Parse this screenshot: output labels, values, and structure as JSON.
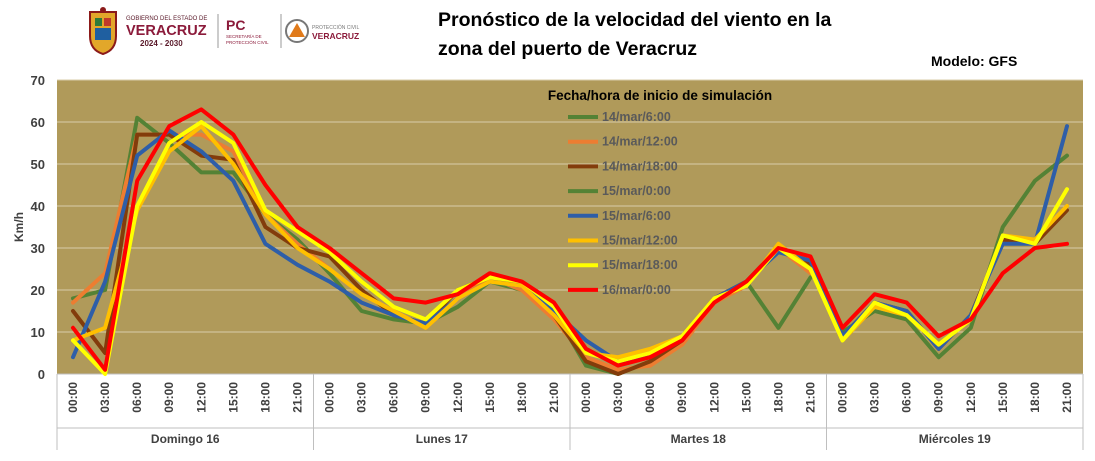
{
  "header": {
    "title_line1": "Pronóstico de la velocidad del viento en la",
    "title_line2": "zona del puerto de Veracruz",
    "model": "Modelo: GFS",
    "logo_gov_small": "GOBIERNO DEL ESTADO DE",
    "logo_gov_name": "VERACRUZ",
    "logo_gov_years": "2024 - 2030",
    "logo_pc": "PC",
    "logo_pc_sub1": "SECRETARÍA DE",
    "logo_pc_sub2": "PROTECCIÓN CIVIL",
    "logo_pc2_small": "PROTECCIÓN CIVIL",
    "logo_pc2_name": "VERACRUZ"
  },
  "colors": {
    "plot_bg": "#b09a5a",
    "grid": "#d8ccaa"
  },
  "chart_data": {
    "type": "line",
    "title": "",
    "xlabel": "",
    "ylabel": "Km/h",
    "ylim": [
      0,
      70
    ],
    "yticks": [
      0,
      10,
      20,
      30,
      40,
      50,
      60,
      70
    ],
    "legend_title": "Fecha/hora de inicio de simulación",
    "legend_position": "top-center",
    "grid": true,
    "categories": [
      "00:00",
      "03:00",
      "06:00",
      "09:00",
      "12:00",
      "15:00",
      "18:00",
      "21:00",
      "00:00",
      "03:00",
      "06:00",
      "09:00",
      "12:00",
      "15:00",
      "18:00",
      "21:00",
      "00:00",
      "03:00",
      "06:00",
      "09:00",
      "12:00",
      "15:00",
      "18:00",
      "21:00",
      "00:00",
      "03:00",
      "06:00",
      "09:00",
      "12:00",
      "15:00",
      "18:00",
      "21:00"
    ],
    "day_groups": [
      {
        "label": "Domingo 16",
        "start": 0,
        "end": 7
      },
      {
        "label": "Lunes 17",
        "start": 8,
        "end": 15
      },
      {
        "label": "Martes 18",
        "start": 16,
        "end": 23
      },
      {
        "label": "Miércoles 19",
        "start": 24,
        "end": 31
      }
    ],
    "series": [
      {
        "name": "14/mar/6:00",
        "color": "#548235",
        "values": [
          18,
          20,
          61,
          55,
          48,
          48,
          38,
          32,
          24,
          15,
          13,
          12,
          16,
          22,
          20,
          15,
          2,
          0,
          3,
          8,
          18,
          22,
          11,
          23,
          null,
          null,
          null,
          null,
          null,
          null,
          null,
          null
        ]
      },
      {
        "name": "14/mar/12:00",
        "color": "#ed7d31",
        "values": [
          17,
          24,
          57,
          57,
          57,
          53,
          38,
          31,
          25,
          19,
          15,
          11,
          18,
          23,
          20,
          13,
          4,
          1,
          2,
          7,
          17,
          21,
          30,
          24,
          null,
          null,
          null,
          null,
          null,
          null,
          null,
          null
        ]
      },
      {
        "name": "14/mar/18:00",
        "color": "#833c0b",
        "values": [
          15,
          5,
          57,
          57,
          52,
          51,
          35,
          30,
          28,
          20,
          14,
          12,
          20,
          23,
          22,
          14,
          3,
          0,
          3,
          8,
          18,
          22,
          30,
          26,
          9,
          17,
          15,
          6,
          14,
          32,
          31,
          39
        ]
      },
      {
        "name": "15/mar/0:00",
        "color": "#548235",
        "values": [
          null,
          null,
          null,
          null,
          null,
          null,
          null,
          null,
          null,
          null,
          null,
          null,
          null,
          null,
          null,
          null,
          null,
          null,
          null,
          null,
          null,
          null,
          null,
          null,
          10,
          15,
          13,
          4,
          11,
          35,
          46,
          52
        ]
      },
      {
        "name": "15/mar/6:00",
        "color": "#2e5ea8",
        "values": [
          4,
          22,
          52,
          58,
          53,
          46,
          31,
          26,
          22,
          17,
          14,
          12,
          18,
          22,
          21,
          15,
          8,
          3,
          4,
          9,
          18,
          22,
          29,
          27,
          9,
          17,
          15,
          6,
          14,
          31,
          31,
          59
        ]
      },
      {
        "name": "15/mar/12:00",
        "color": "#ffc000",
        "values": [
          8,
          11,
          39,
          53,
          59,
          50,
          38,
          30,
          25,
          19,
          15,
          11,
          18,
          22,
          21,
          14,
          5,
          4,
          6,
          9,
          18,
          21,
          31,
          25,
          8,
          16,
          14,
          7,
          13,
          33,
          32,
          40
        ]
      },
      {
        "name": "15/mar/18:00",
        "color": "#ffff00",
        "values": [
          8,
          0,
          40,
          55,
          60,
          55,
          39,
          34,
          29,
          22,
          16,
          13,
          20,
          23,
          22,
          16,
          5,
          3,
          5,
          9,
          18,
          21,
          30,
          25,
          8,
          17,
          14,
          7,
          13,
          33,
          31,
          44
        ]
      },
      {
        "name": "16/mar/0:00",
        "color": "#ff0000",
        "values": [
          11,
          1,
          46,
          59,
          63,
          57,
          45,
          35,
          30,
          24,
          18,
          17,
          19,
          24,
          22,
          17,
          6,
          2,
          4,
          8,
          17,
          22,
          30,
          28,
          11,
          19,
          17,
          9,
          13,
          24,
          30,
          31
        ]
      }
    ]
  }
}
